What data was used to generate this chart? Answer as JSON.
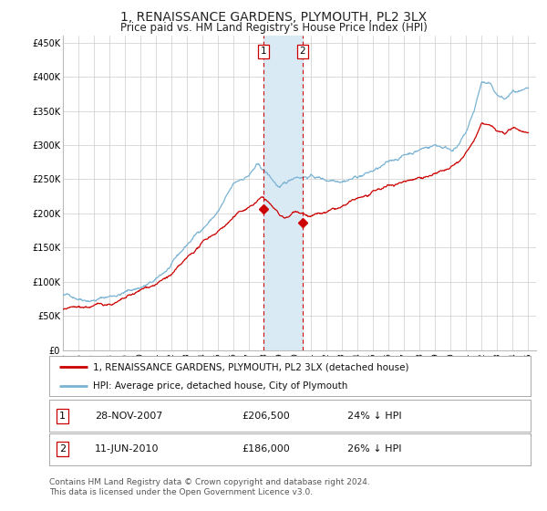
{
  "title": "1, RENAISSANCE GARDENS, PLYMOUTH, PL2 3LX",
  "subtitle": "Price paid vs. HM Land Registry's House Price Index (HPI)",
  "title_fontsize": 10,
  "subtitle_fontsize": 8.5,
  "hpi_color": "#7ab3d4",
  "price_color": "#cc0000",
  "marker_color": "#cc0000",
  "highlight_color": "#daeaf5",
  "dashed_color": "#cc0000",
  "grid_color": "#cccccc",
  "bg_color": "#ffffff",
  "ylim": [
    0,
    460000
  ],
  "yticks": [
    0,
    50000,
    100000,
    150000,
    200000,
    250000,
    300000,
    350000,
    400000,
    450000
  ],
  "ytick_labels": [
    "£0",
    "£50K",
    "£100K",
    "£150K",
    "£200K",
    "£250K",
    "£300K",
    "£350K",
    "£400K",
    "£450K"
  ],
  "xlim_start": 1995.0,
  "xlim_end": 2025.5,
  "xtick_years": [
    1995,
    1996,
    1997,
    1998,
    1999,
    2000,
    2001,
    2002,
    2003,
    2004,
    2005,
    2006,
    2007,
    2008,
    2009,
    2010,
    2011,
    2012,
    2013,
    2014,
    2015,
    2016,
    2017,
    2018,
    2019,
    2020,
    2021,
    2022,
    2023,
    2024,
    2025
  ],
  "sale1_x": 2007.91,
  "sale1_y": 206500,
  "sale1_label": "1",
  "sale2_x": 2010.44,
  "sale2_y": 186000,
  "sale2_label": "2",
  "legend_entry1": "1, RENAISSANCE GARDENS, PLYMOUTH, PL2 3LX (detached house)",
  "legend_entry2": "HPI: Average price, detached house, City of Plymouth",
  "table_rows": [
    {
      "num": "1",
      "date": "28-NOV-2007",
      "price": "£206,500",
      "hpi": "24% ↓ HPI"
    },
    {
      "num": "2",
      "date": "11-JUN-2010",
      "price": "£186,000",
      "hpi": "26% ↓ HPI"
    }
  ],
  "footer": "Contains HM Land Registry data © Crown copyright and database right 2024.\nThis data is licensed under the Open Government Licence v3.0.",
  "font_family": "DejaVu Sans"
}
